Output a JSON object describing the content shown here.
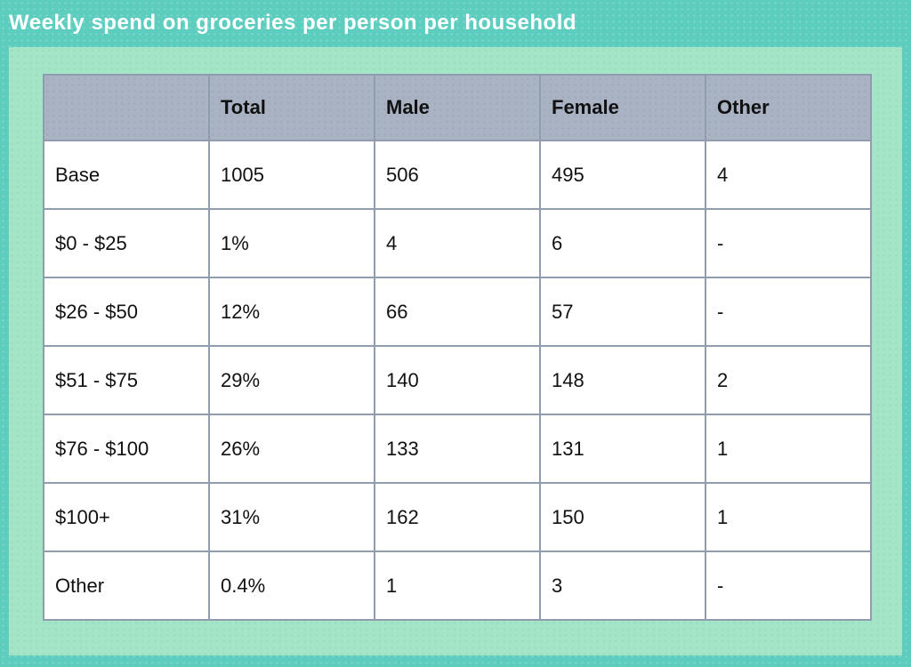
{
  "title": "Weekly spend on groceries per person per household",
  "colors": {
    "frame_teal": "#5ccdbe",
    "panel_green": "#a4e4c7",
    "header_gray_blue": "#a9b3c3",
    "table_border": "#919dae",
    "cell_background": "#ffffff",
    "title_text": "#ffffff",
    "table_text": "#111111"
  },
  "chart_data": {
    "type": "table",
    "title": "Weekly spend on groceries per person per household",
    "columns": [
      "",
      "Total",
      "Male",
      "Female",
      "Other"
    ],
    "rows": [
      [
        "Base",
        "1005",
        "506",
        "495",
        "4"
      ],
      [
        "$0 - $25",
        "1%",
        "4",
        "6",
        "-"
      ],
      [
        "$26 - $50",
        "12%",
        "66",
        "57",
        "-"
      ],
      [
        "$51 - $75",
        "29%",
        "140",
        "148",
        "2"
      ],
      [
        "$76 - $100",
        "26%",
        "133",
        "131",
        "1"
      ],
      [
        "$100+",
        "31%",
        "162",
        "150",
        "1"
      ],
      [
        "Other",
        "0.4%",
        "1",
        "3",
        "-"
      ]
    ]
  }
}
